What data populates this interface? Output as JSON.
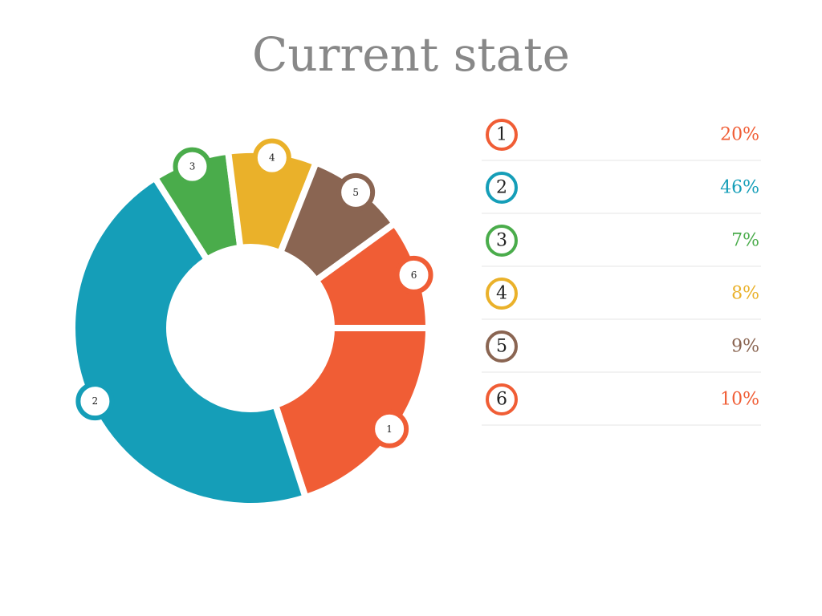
{
  "chart_data": {
    "type": "pie",
    "title": "Current state",
    "categories": [
      "1",
      "2",
      "3",
      "4",
      "5",
      "6"
    ],
    "values": [
      20,
      46,
      7,
      8,
      9,
      10
    ],
    "value_labels": [
      "20%",
      "46%",
      "7%",
      "8%",
      "9%",
      "10%"
    ],
    "colors": [
      "#f05d35",
      "#159eb8",
      "#4aac4b",
      "#eab12a",
      "#8a6552",
      "#f05d35"
    ]
  }
}
